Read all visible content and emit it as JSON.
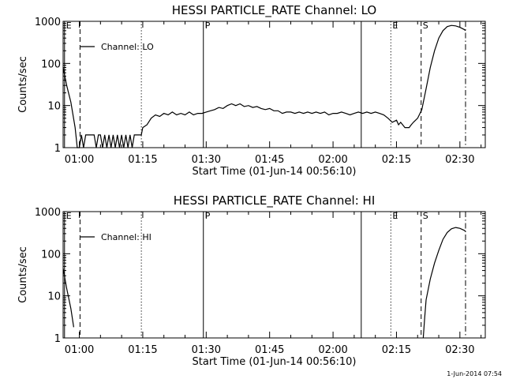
{
  "footer_timestamp": "1-Jun-2014 07:54",
  "chart_data": [
    {
      "type": "line",
      "title": "HESSI PARTICLE_RATE Channel: LO",
      "xlabel": "Start Time (01-Jun-14 00:56:10)",
      "ylabel": "Counts/sec",
      "y_scale": "log",
      "ylim": [
        1,
        1000
      ],
      "xlim": [
        "00:56:10",
        "02:36:00"
      ],
      "x_ticks": [
        "01:00",
        "01:15",
        "01:30",
        "01:45",
        "02:00",
        "02:15",
        "02:30"
      ],
      "y_ticks": [
        "1",
        "10",
        "100",
        "1000"
      ],
      "legend": {
        "label": "Channel: LO",
        "position": "top-left"
      },
      "markers": [
        {
          "time": "00:56:30",
          "style": "solid",
          "label": "E"
        },
        {
          "time": "01:00:10",
          "style": "dashed",
          "label": ""
        },
        {
          "time": "01:14:40",
          "style": "dotted",
          "label": ""
        },
        {
          "time": "01:29:20",
          "style": "solid",
          "label": "P"
        },
        {
          "time": "02:06:40",
          "style": "solid",
          "label": ""
        },
        {
          "time": "02:13:40",
          "style": "dotted",
          "label": "E"
        },
        {
          "time": "02:20:50",
          "style": "dashed",
          "label": "S"
        },
        {
          "time": "02:31:20",
          "style": "dashdot",
          "label": ""
        }
      ],
      "series": [
        {
          "name": "",
          "points": [
            [
              "00:56:10",
              80
            ],
            [
              "00:57:00",
              30
            ],
            [
              "00:58:00",
              12
            ],
            [
              "00:59:00",
              3
            ],
            [
              "00:59:30",
              1
            ],
            [
              "01:00:00",
              1
            ],
            [
              "01:00:30",
              2
            ],
            [
              "01:01:00",
              1
            ],
            [
              "01:01:30",
              2
            ],
            [
              "01:02:30",
              2
            ],
            [
              "01:03:30",
              2
            ],
            [
              "01:04:00",
              1
            ],
            [
              "01:04:30",
              2
            ],
            [
              "01:05:00",
              2
            ],
            [
              "01:05:30",
              1
            ],
            [
              "01:06:00",
              2
            ],
            [
              "01:06:30",
              1
            ],
            [
              "01:07:00",
              2
            ],
            [
              "01:07:30",
              1
            ],
            [
              "01:08:00",
              2
            ],
            [
              "01:08:30",
              1
            ],
            [
              "01:09:00",
              2
            ],
            [
              "01:09:30",
              1
            ],
            [
              "01:10:00",
              2
            ],
            [
              "01:10:30",
              1
            ],
            [
              "01:11:00",
              2
            ],
            [
              "01:11:30",
              1
            ],
            [
              "01:12:00",
              2
            ],
            [
              "01:12:30",
              1
            ],
            [
              "01:13:00",
              2
            ],
            [
              "01:14:40",
              2
            ],
            [
              "01:15:00",
              3
            ],
            [
              "01:16:00",
              3.5
            ],
            [
              "01:17:00",
              5
            ],
            [
              "01:18:00",
              6
            ],
            [
              "01:19:00",
              5.5
            ],
            [
              "01:20:00",
              6.5
            ],
            [
              "01:21:00",
              6
            ],
            [
              "01:22:00",
              7
            ],
            [
              "01:23:00",
              6
            ],
            [
              "01:24:00",
              6.5
            ],
            [
              "01:25:00",
              6
            ],
            [
              "01:26:00",
              7
            ],
            [
              "01:27:00",
              6
            ],
            [
              "01:28:00",
              6.5
            ],
            [
              "01:29:00",
              6.5
            ],
            [
              "01:30:00",
              7
            ],
            [
              "01:31:00",
              7.5
            ],
            [
              "01:32:00",
              8
            ],
            [
              "01:33:00",
              9
            ],
            [
              "01:34:00",
              8.5
            ],
            [
              "01:35:00",
              10
            ],
            [
              "01:36:00",
              11
            ],
            [
              "01:37:00",
              10
            ],
            [
              "01:38:00",
              11
            ],
            [
              "01:39:00",
              9.5
            ],
            [
              "01:40:00",
              10
            ],
            [
              "01:41:00",
              9
            ],
            [
              "01:42:00",
              9.5
            ],
            [
              "01:43:00",
              8.5
            ],
            [
              "01:44:00",
              8
            ],
            [
              "01:45:00",
              8.5
            ],
            [
              "01:46:00",
              7.5
            ],
            [
              "01:47:00",
              7.5
            ],
            [
              "01:48:00",
              6.5
            ],
            [
              "01:49:00",
              7
            ],
            [
              "01:50:00",
              7
            ],
            [
              "01:51:00",
              6.5
            ],
            [
              "01:52:00",
              7
            ],
            [
              "01:53:00",
              6.5
            ],
            [
              "01:54:00",
              7
            ],
            [
              "01:55:00",
              6.5
            ],
            [
              "01:56:00",
              7
            ],
            [
              "01:57:00",
              6.5
            ],
            [
              "01:58:00",
              7
            ],
            [
              "01:59:00",
              6
            ],
            [
              "02:00:00",
              6.5
            ],
            [
              "02:01:00",
              6.5
            ],
            [
              "02:02:00",
              7
            ],
            [
              "02:03:00",
              6.5
            ],
            [
              "02:04:00",
              6
            ],
            [
              "02:05:00",
              6.5
            ],
            [
              "02:06:00",
              7
            ],
            [
              "02:07:00",
              6.5
            ],
            [
              "02:08:00",
              7
            ],
            [
              "02:09:00",
              6.5
            ],
            [
              "02:10:00",
              7
            ],
            [
              "02:11:00",
              6.5
            ],
            [
              "02:12:00",
              6
            ],
            [
              "02:13:00",
              5
            ],
            [
              "02:14:00",
              4
            ],
            [
              "02:15:00",
              4.5
            ],
            [
              "02:15:30",
              3.5
            ],
            [
              "02:16:00",
              4
            ],
            [
              "02:17:00",
              3
            ],
            [
              "02:18:00",
              3
            ],
            [
              "02:18:30",
              3.5
            ],
            [
              "02:19:00",
              4
            ],
            [
              "02:20:00",
              5
            ],
            [
              "02:21:00",
              8
            ],
            [
              "02:22:00",
              25
            ],
            [
              "02:23:00",
              80
            ],
            [
              "02:24:00",
              200
            ],
            [
              "02:25:00",
              400
            ],
            [
              "02:26:00",
              600
            ],
            [
              "02:27:00",
              750
            ],
            [
              "02:28:00",
              800
            ],
            [
              "02:29:00",
              780
            ],
            [
              "02:30:00",
              720
            ],
            [
              "02:31:00",
              640
            ],
            [
              "02:31:20",
              600
            ]
          ]
        }
      ]
    },
    {
      "type": "line",
      "title": "HESSI PARTICLE_RATE Channel: HI",
      "xlabel": "Start Time (01-Jun-14 00:56:10)",
      "ylabel": "Counts/sec",
      "y_scale": "log",
      "ylim": [
        1,
        1000
      ],
      "xlim": [
        "00:56:10",
        "02:36:00"
      ],
      "x_ticks": [
        "01:00",
        "01:15",
        "01:30",
        "01:45",
        "02:00",
        "02:15",
        "02:30"
      ],
      "y_ticks": [
        "1",
        "10",
        "100",
        "1000"
      ],
      "legend": {
        "label": "Channel: HI",
        "position": "top-left"
      },
      "markers": [
        {
          "time": "00:56:30",
          "style": "solid",
          "label": "E"
        },
        {
          "time": "01:00:10",
          "style": "dashed",
          "label": ""
        },
        {
          "time": "01:14:40",
          "style": "dotted",
          "label": ""
        },
        {
          "time": "01:29:20",
          "style": "solid",
          "label": "P"
        },
        {
          "time": "02:06:40",
          "style": "solid",
          "label": ""
        },
        {
          "time": "02:13:40",
          "style": "dotted",
          "label": "E"
        },
        {
          "time": "02:20:50",
          "style": "dashed",
          "label": "S"
        },
        {
          "time": "02:31:20",
          "style": "dashdot",
          "label": ""
        }
      ],
      "series": [
        {
          "name": "",
          "points": [
            [
              "00:56:10",
              45
            ],
            [
              "00:57:00",
              15
            ],
            [
              "00:58:00",
              5
            ],
            [
              "00:58:40",
              1.8
            ]
          ]
        },
        {
          "name": "",
          "points": [
            [
              "02:21:20",
              1
            ],
            [
              "02:21:40",
              3
            ],
            [
              "02:22:00",
              8
            ],
            [
              "02:23:00",
              25
            ],
            [
              "02:24:00",
              60
            ],
            [
              "02:25:00",
              120
            ],
            [
              "02:26:00",
              220
            ],
            [
              "02:27:00",
              320
            ],
            [
              "02:28:00",
              390
            ],
            [
              "02:29:00",
              420
            ],
            [
              "02:30:00",
              400
            ],
            [
              "02:31:00",
              360
            ],
            [
              "02:31:20",
              340
            ]
          ]
        }
      ]
    }
  ]
}
